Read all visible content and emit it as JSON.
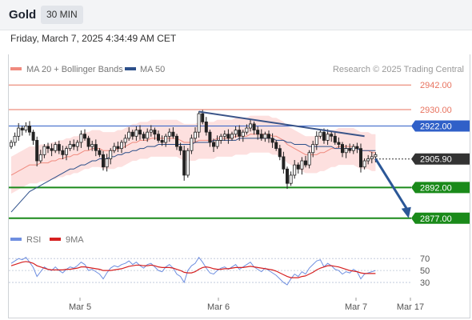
{
  "header": {
    "symbol": "Gold",
    "interval": "30 MIN",
    "datetime": "Friday, March 7, 2025 4:34:49 AM CET"
  },
  "legend": {
    "ma20": "MA 20 + Bollinger Bands",
    "ma50": "MA 50",
    "credit": "Research © 2025 Trading Central"
  },
  "rsi_legend": {
    "rsi": "RSI",
    "ma9": "9MA"
  },
  "colors": {
    "resistance": "#e8735f",
    "pivot": "#3060c8",
    "support": "#1a8a1a",
    "current": "#333333",
    "ma20": "#f08a7e",
    "ma50": "#2c4f8a",
    "candle": "#222222",
    "band": "#fde0df",
    "arrow": "#2b5797",
    "trendline": "#3a5488",
    "rsi": "#6f8fe0",
    "rsi_ma": "#d62020"
  },
  "chart_data": {
    "type": "candlestick",
    "x_ticks": [
      "Mar 5",
      "Mar 6",
      "Mar 7",
      "Mar 17"
    ],
    "ylim": [
      2873,
      2946
    ],
    "levels": [
      {
        "label": "2942.00",
        "value": 2942.0,
        "kind": "resistance"
      },
      {
        "label": "2930.00",
        "value": 2930.0,
        "kind": "resistance"
      },
      {
        "label": "2922.00",
        "value": 2922.0,
        "kind": "pivot"
      },
      {
        "label": "2905.90",
        "value": 2905.9,
        "kind": "current"
      },
      {
        "label": "2892.00",
        "value": 2892.0,
        "kind": "support"
      },
      {
        "label": "2877.00",
        "value": 2877.0,
        "kind": "support"
      }
    ],
    "closes": [
      2914,
      2917,
      2921,
      2920,
      2922,
      2919,
      2915,
      2905,
      2908,
      2912,
      2911,
      2910,
      2913,
      2910,
      2908,
      2911,
      2913,
      2912,
      2914,
      2918,
      2916,
      2912,
      2913,
      2910,
      2908,
      2902,
      2906,
      2910,
      2912,
      2911,
      2914,
      2916,
      2919,
      2917,
      2920,
      2918,
      2916,
      2919,
      2920,
      2918,
      2915,
      2914,
      2917,
      2919,
      2917,
      2912,
      2910,
      2898,
      2910,
      2916,
      2919,
      2928,
      2924,
      2919,
      2914,
      2912,
      2915,
      2917,
      2918,
      2916,
      2918,
      2920,
      2917,
      2919,
      2921,
      2923,
      2920,
      2918,
      2916,
      2918,
      2916,
      2914,
      2911,
      2907,
      2901,
      2894,
      2898,
      2903,
      2901,
      2905,
      2903,
      2909,
      2913,
      2917,
      2919,
      2915,
      2918,
      2917,
      2914,
      2913,
      2909,
      2911,
      2910,
      2912,
      2911,
      2902,
      2905,
      2906,
      2907,
      2908
    ],
    "ma20": [
      2898,
      2899,
      2900,
      2901,
      2902,
      2903,
      2903,
      2903,
      2904,
      2904,
      2904,
      2905,
      2905,
      2906,
      2906,
      2907,
      2907,
      2908,
      2908,
      2909,
      2910,
      2910,
      2911,
      2911,
      2911,
      2910,
      2910,
      2910,
      2910,
      2911,
      2911,
      2912,
      2913,
      2914,
      2914,
      2915,
      2915,
      2915,
      2916,
      2916,
      2916,
      2916,
      2916,
      2916,
      2916,
      2916,
      2915,
      2914,
      2914,
      2914,
      2914,
      2915,
      2915,
      2915,
      2915,
      2915,
      2916,
      2916,
      2916,
      2916,
      2916,
      2917,
      2917,
      2917,
      2917,
      2918,
      2918,
      2918,
      2918,
      2918,
      2918,
      2917,
      2917,
      2916,
      2915,
      2913,
      2912,
      2911,
      2910,
      2909,
      2908,
      2908,
      2908,
      2908,
      2909,
      2909,
      2910,
      2911,
      2911,
      2912,
      2912,
      2912,
      2912,
      2912,
      2911,
      2910,
      2910,
      2910,
      2909,
      2909
    ],
    "ma50": [
      2880,
      2882,
      2884,
      2886,
      2888,
      2890,
      2891,
      2892,
      2893,
      2894,
      2895,
      2896,
      2897,
      2898,
      2899,
      2900,
      2901,
      2901,
      2902,
      2903,
      2903,
      2904,
      2905,
      2905,
      2906,
      2906,
      2906,
      2907,
      2907,
      2908,
      2908,
      2909,
      2909,
      2910,
      2910,
      2911,
      2911,
      2912,
      2912,
      2912,
      2913,
      2913,
      2913,
      2913,
      2913,
      2913,
      2913,
      2913,
      2913,
      2913,
      2914,
      2914,
      2914,
      2914,
      2914,
      2915,
      2915,
      2915,
      2915,
      2915,
      2915,
      2915,
      2916,
      2916,
      2916,
      2916,
      2916,
      2916,
      2916,
      2916,
      2916,
      2916,
      2915,
      2915,
      2915,
      2914,
      2914,
      2913,
      2913,
      2913,
      2913,
      2912,
      2912,
      2912,
      2912,
      2912,
      2912,
      2912,
      2911,
      2911,
      2911,
      2911,
      2911,
      2911,
      2911,
      2910,
      2910,
      2910,
      2910,
      2910
    ],
    "band_width": 9,
    "trendline": {
      "from": {
        "i": 51,
        "v": 2929
      },
      "to": {
        "i": 96,
        "v": 2917
      }
    },
    "projection": {
      "from": {
        "i": 99,
        "v": 2906
      },
      "to": {
        "i": 108,
        "v": 2877
      }
    },
    "rsi": {
      "ticks": [
        70,
        50,
        30
      ],
      "values": [
        62,
        66,
        70,
        68,
        72,
        64,
        55,
        40,
        48,
        56,
        52,
        50,
        56,
        50,
        46,
        52,
        56,
        54,
        58,
        64,
        60,
        50,
        52,
        48,
        44,
        36,
        46,
        54,
        58,
        56,
        60,
        62,
        66,
        60,
        64,
        58,
        54,
        60,
        62,
        56,
        50,
        48,
        56,
        60,
        54,
        44,
        40,
        30,
        50,
        58,
        62,
        72,
        64,
        54,
        46,
        44,
        50,
        54,
        56,
        52,
        56,
        60,
        52,
        56,
        60,
        64,
        56,
        52,
        48,
        54,
        50,
        46,
        42,
        36,
        30,
        26,
        36,
        44,
        40,
        48,
        44,
        54,
        60,
        66,
        68,
        56,
        62,
        58,
        52,
        50,
        44,
        48,
        46,
        52,
        48,
        36,
        44,
        46,
        48,
        50
      ],
      "ma9": [
        58,
        60,
        62,
        64,
        65,
        64,
        62,
        58,
        56,
        54,
        52,
        51,
        51,
        51,
        51,
        52,
        52,
        53,
        54,
        56,
        56,
        55,
        54,
        53,
        52,
        50,
        50,
        50,
        51,
        52,
        53,
        55,
        57,
        58,
        59,
        59,
        58,
        58,
        59,
        58,
        56,
        55,
        55,
        55,
        54,
        52,
        50,
        47,
        46,
        46,
        48,
        52,
        55,
        56,
        55,
        53,
        52,
        52,
        53,
        53,
        54,
        55,
        55,
        55,
        56,
        57,
        56,
        55,
        54,
        53,
        52,
        51,
        49,
        46,
        43,
        40,
        38,
        38,
        38,
        40,
        41,
        44,
        47,
        51,
        54,
        56,
        58,
        58,
        57,
        56,
        54,
        52,
        50,
        49,
        48,
        46,
        45,
        45,
        45,
        45
      ]
    }
  }
}
